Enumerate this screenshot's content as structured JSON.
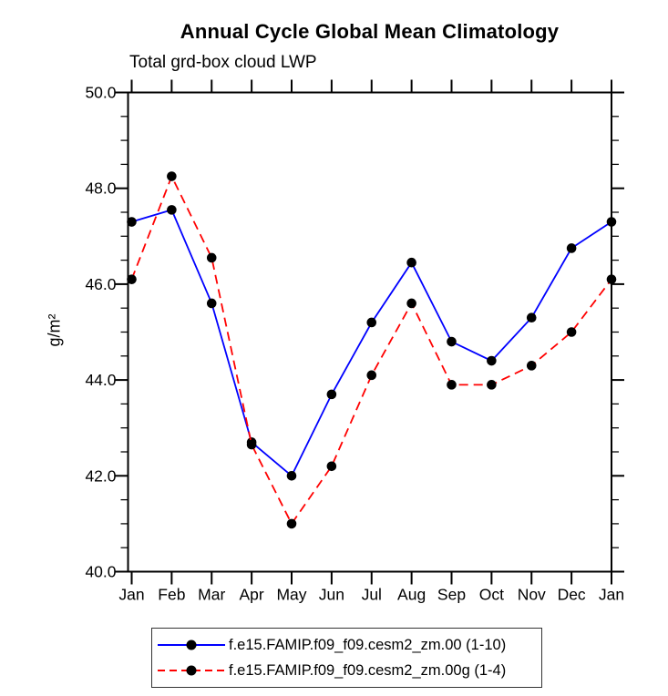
{
  "title": "Annual Cycle Global Mean Climatology",
  "subtitle": "Total grd-box cloud LWP",
  "chart_data": {
    "type": "line",
    "title": "Annual Cycle Global Mean Climatology",
    "subtitle": "Total grd-box cloud LWP",
    "xlabel": "",
    "ylabel": "g/m²",
    "categories": [
      "Jan",
      "Feb",
      "Mar",
      "Apr",
      "May",
      "Jun",
      "Jul",
      "Aug",
      "Sep",
      "Oct",
      "Nov",
      "Dec",
      "Jan"
    ],
    "ylim": [
      40.0,
      50.0
    ],
    "ytick_major_step": 2.0,
    "ytick_minor_step": 0.5,
    "ytick_labels": [
      "40.0",
      "42.0",
      "44.0",
      "46.0",
      "48.0",
      "50.0"
    ],
    "grid": false,
    "legend_position": "bottom",
    "series": [
      {
        "name": "f.e15.FAMIP.f09_f09.cesm2_zm.00 (1-10)",
        "color": "#0000ff",
        "line_style": "solid",
        "marker": "circle",
        "marker_color": "#000000",
        "values": [
          47.3,
          47.55,
          45.6,
          42.7,
          42.0,
          43.7,
          45.2,
          46.45,
          44.8,
          44.4,
          45.3,
          46.75,
          47.3
        ]
      },
      {
        "name": "f.e15.FAMIP.f09_f09.cesm2_zm.00g (1-4)",
        "color": "#ff0000",
        "line_style": "dashed",
        "marker": "circle",
        "marker_color": "#000000",
        "values": [
          46.1,
          48.25,
          46.55,
          42.65,
          41.0,
          42.2,
          44.1,
          45.6,
          43.9,
          43.9,
          44.3,
          45.0,
          46.1
        ]
      }
    ]
  },
  "colors": {
    "background": "#ffffff",
    "axis": "#000000",
    "text": "#000000",
    "legend_border": "#333333"
  }
}
